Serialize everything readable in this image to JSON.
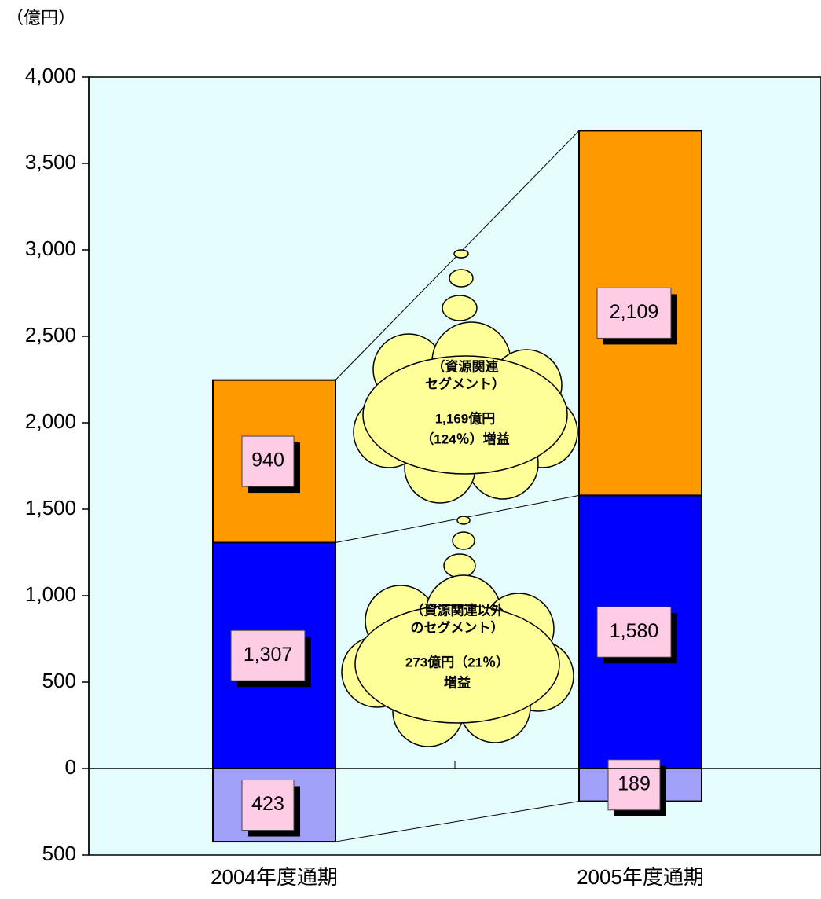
{
  "chart_data": {
    "type": "stacked_bar",
    "unit_label": "（億円）",
    "categories": [
      "2004年度通期",
      "2005年度通期"
    ],
    "series": [
      {
        "color": "#a0a0f8",
        "values": [
          -423,
          -189
        ],
        "value_labels": [
          "423",
          "189"
        ]
      },
      {
        "color": "#0000ff",
        "values": [
          1307,
          1580
        ],
        "value_labels": [
          "1,307",
          "1,580"
        ]
      },
      {
        "color": "#ff9900",
        "values": [
          940,
          2109
        ],
        "value_labels": [
          "940",
          "2,109"
        ]
      }
    ],
    "ylim": [
      -500,
      4000
    ],
    "yticks": [
      {
        "value": -500,
        "label": "500"
      },
      0,
      {
        "value": 500,
        "label": "500"
      },
      {
        "value": 1000,
        "label": "1,000"
      },
      {
        "value": 1500,
        "label": "1,500"
      },
      {
        "value": 2000,
        "label": "2,000"
      },
      {
        "value": 2500,
        "label": "2,500"
      },
      {
        "value": 3000,
        "label": "3,000"
      },
      {
        "value": 3500,
        "label": "3,500"
      },
      {
        "value": 4000,
        "label": "4,000"
      }
    ],
    "annotations": [
      {
        "lines": [
          "（資源関連",
          "セグメント）",
          "1,169億円",
          "（124％）増益"
        ]
      },
      {
        "lines": [
          "（資源関連以外",
          "のセグメント）",
          "273億円（21％）",
          "増益"
        ]
      }
    ]
  }
}
